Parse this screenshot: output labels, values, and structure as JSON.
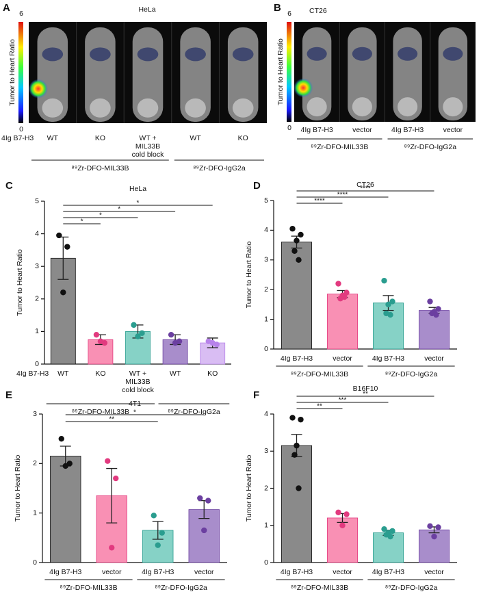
{
  "image_panels": [
    {
      "label": "A",
      "title": "HeLa",
      "colorbar_max": "6",
      "colorbar_min": "0",
      "colorbar_label": "Tumor to Heart Ratio",
      "row_label": "4Ig B7-H3",
      "categories": [
        "WT",
        "KO",
        "WT +\nMIL33B\ncold block",
        "WT",
        "KO"
      ],
      "groups": [
        {
          "label": "⁸⁹Zr-DFO-MIL33B",
          "span": [
            0,
            2
          ]
        },
        {
          "label": "⁸⁹Zr-DFO-IgG2a",
          "span": [
            3,
            4
          ]
        }
      ]
    },
    {
      "label": "B",
      "title": "CT26",
      "colorbar_max": "6",
      "colorbar_min": "0",
      "colorbar_label": "Tumor to Heart Ratio",
      "categories": [
        "4Ig B7-H3",
        "vector",
        "4Ig B7-H3",
        "vector"
      ],
      "groups": [
        {
          "label": "⁸⁹Zr-DFO-MIL33B",
          "span": [
            0,
            1
          ]
        },
        {
          "label": "⁸⁹Zr-DFO-IgG2a",
          "span": [
            2,
            3
          ]
        }
      ]
    }
  ],
  "chart_data": [
    {
      "type": "bar",
      "label": "C",
      "title": "HeLa",
      "ylabel": "Tumor to Heart Ratio",
      "row_label": "4Ig B7-H3",
      "categories": [
        "WT",
        "KO",
        "WT +\nMIL33B\ncold block",
        "WT",
        "KO"
      ],
      "values": [
        3.25,
        0.75,
        1.0,
        0.75,
        0.65
      ],
      "errors": [
        0.65,
        0.15,
        0.2,
        0.15,
        0.15
      ],
      "points": [
        [
          3.95,
          3.6,
          2.2
        ],
        [
          0.9,
          0.65,
          0.7
        ],
        [
          1.2,
          0.95,
          0.85
        ],
        [
          0.9,
          0.7,
          0.65
        ],
        [
          0.7,
          0.6,
          0.65
        ]
      ],
      "colors": [
        "#8a8a8a",
        "#f990b4",
        "#86d2c6",
        "#a88dcb",
        "#d9bdf3"
      ],
      "point_colors": [
        "#111111",
        "#e23a7f",
        "#2a9d8f",
        "#6b3fa0",
        "#b782ea"
      ],
      "ylim": [
        0,
        5
      ],
      "yticks": [
        0,
        1,
        2,
        3,
        4,
        5
      ],
      "groups": [
        {
          "label": "⁸⁹Zr-DFO-MIL33B",
          "span": [
            0,
            2
          ]
        },
        {
          "label": "⁸⁹Zr-DFO-IgG2a",
          "span": [
            3,
            4
          ]
        }
      ],
      "significance": [
        {
          "to": 4,
          "label": "*"
        },
        {
          "to": 3,
          "label": "*"
        },
        {
          "to": 2,
          "label": "*"
        },
        {
          "to": 1,
          "label": "*"
        }
      ]
    },
    {
      "type": "bar",
      "label": "D",
      "title": "CT26",
      "ylabel": "Tumor to Heart Ratio",
      "categories": [
        "4Ig B7-H3",
        "vector",
        "4Ig B7-H3",
        "vector"
      ],
      "values": [
        3.6,
        1.85,
        1.55,
        1.3
      ],
      "errors": [
        0.2,
        0.12,
        0.25,
        0.1
      ],
      "points": [
        [
          4.05,
          3.85,
          3.65,
          3.3,
          3.0
        ],
        [
          2.2,
          1.9,
          1.8,
          1.7,
          1.75
        ],
        [
          2.3,
          1.6,
          1.5,
          1.2,
          1.15
        ],
        [
          1.6,
          1.35,
          1.25,
          1.2,
          1.15
        ]
      ],
      "colors": [
        "#8a8a8a",
        "#f990b4",
        "#86d2c6",
        "#a88dcb"
      ],
      "point_colors": [
        "#111111",
        "#e23a7f",
        "#2a9d8f",
        "#6b3fa0"
      ],
      "ylim": [
        0,
        5
      ],
      "yticks": [
        0,
        1,
        2,
        3,
        4,
        5
      ],
      "groups": [
        {
          "label": "⁸⁹Zr-DFO-MIL33B",
          "span": [
            0,
            1
          ]
        },
        {
          "label": "⁸⁹Zr-DFO-IgG2a",
          "span": [
            2,
            3
          ]
        }
      ],
      "significance": [
        {
          "to": 3,
          "label": "****"
        },
        {
          "to": 2,
          "label": "****"
        },
        {
          "to": 1,
          "label": "****"
        }
      ]
    },
    {
      "type": "bar",
      "label": "E",
      "title": "4T1",
      "ylabel": "Tumor to Heart Ratio",
      "categories": [
        "4Ig B7-H3",
        "vector",
        "4Ig B7-H3",
        "vector"
      ],
      "values": [
        2.15,
        1.35,
        0.65,
        1.07
      ],
      "errors": [
        0.2,
        0.55,
        0.18,
        0.18
      ],
      "points": [
        [
          2.5,
          2.0,
          1.95
        ],
        [
          2.05,
          1.7,
          0.3
        ],
        [
          0.95,
          0.6,
          0.35
        ],
        [
          1.3,
          1.25,
          0.65
        ]
      ],
      "colors": [
        "#8a8a8a",
        "#f990b4",
        "#86d2c6",
        "#a88dcb"
      ],
      "point_colors": [
        "#111111",
        "#e23a7f",
        "#2a9d8f",
        "#6b3fa0"
      ],
      "ylim": [
        0,
        3
      ],
      "yticks": [
        0,
        1,
        2,
        3
      ],
      "groups": [
        {
          "label": "⁸⁹Zr-DFO-MIL33B",
          "span": [
            0,
            1
          ]
        },
        {
          "label": "⁸⁹Zr-DFO-IgG2a",
          "span": [
            2,
            3
          ]
        }
      ],
      "significance": [
        {
          "to": 3,
          "label": "*"
        },
        {
          "to": 2,
          "label": "**"
        }
      ]
    },
    {
      "type": "bar",
      "label": "F",
      "title": "B16F10",
      "ylabel": "Tumor to Heart Ratio",
      "categories": [
        "4Ig B7-H3",
        "vector",
        "4Ig B7-H3",
        "vector"
      ],
      "values": [
        3.15,
        1.2,
        0.8,
        0.88
      ],
      "errors": [
        0.3,
        0.12,
        0.07,
        0.08
      ],
      "points": [
        [
          3.9,
          3.85,
          3.15,
          2.9,
          2.0
        ],
        [
          1.35,
          1.3,
          1.0
        ],
        [
          0.9,
          0.85,
          0.8,
          0.75,
          0.7
        ],
        [
          0.98,
          0.95,
          0.7
        ]
      ],
      "colors": [
        "#8a8a8a",
        "#f990b4",
        "#86d2c6",
        "#a88dcb"
      ],
      "point_colors": [
        "#111111",
        "#e23a7f",
        "#2a9d8f",
        "#6b3fa0"
      ],
      "ylim": [
        0,
        4
      ],
      "yticks": [
        0,
        1,
        2,
        3,
        4
      ],
      "groups": [
        {
          "label": "⁸⁹Zr-DFO-MIL33B",
          "span": [
            0,
            1
          ]
        },
        {
          "label": "⁸⁹Zr-DFO-IgG2a",
          "span": [
            2,
            3
          ]
        }
      ],
      "significance": [
        {
          "to": 3,
          "label": "**"
        },
        {
          "to": 2,
          "label": "***"
        },
        {
          "to": 1,
          "label": "**"
        }
      ]
    }
  ]
}
